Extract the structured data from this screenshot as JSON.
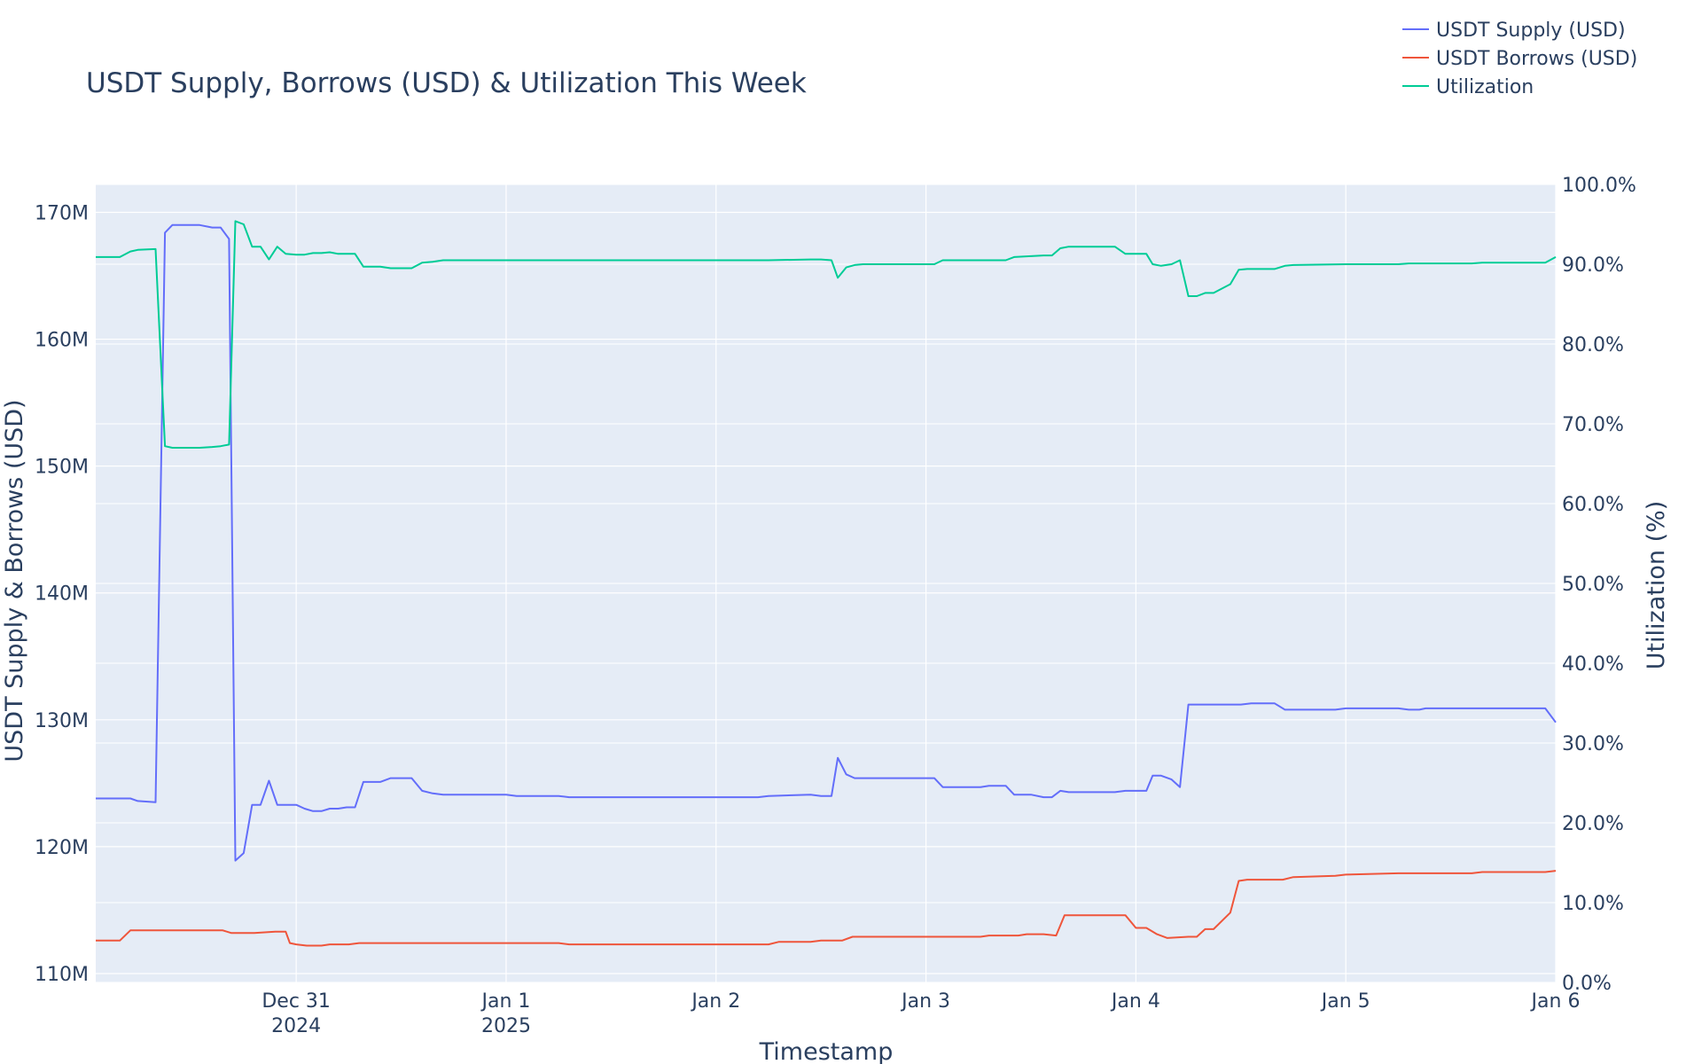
{
  "chart_data": {
    "type": "line",
    "title": "USDT Supply, Borrows (USD) & Utilization This Week",
    "xlabel": "Timestamp",
    "ylabel": "USDT Supply & Borrows (USD)",
    "y2label": "Utilization (%)",
    "xlim": [
      -0.955,
      6
    ],
    "ylim": [
      109.3,
      172.2
    ],
    "y2lim": [
      0,
      100
    ],
    "grid": true,
    "legend": "top-right",
    "x_ticks": [
      {
        "value": 0,
        "line1": "Dec 31",
        "line2": "2024"
      },
      {
        "value": 1,
        "line1": "Jan 1",
        "line2": "2025"
      },
      {
        "value": 2,
        "line1": "Jan 2",
        "line2": ""
      },
      {
        "value": 3,
        "line1": "Jan 3",
        "line2": ""
      },
      {
        "value": 4,
        "line1": "Jan 4",
        "line2": ""
      },
      {
        "value": 5,
        "line1": "Jan 5",
        "line2": ""
      },
      {
        "value": 6,
        "line1": "Jan 6",
        "line2": ""
      }
    ],
    "y_ticks": [
      {
        "value": 110,
        "label": "110M"
      },
      {
        "value": 120,
        "label": "120M"
      },
      {
        "value": 130,
        "label": "130M"
      },
      {
        "value": 140,
        "label": "140M"
      },
      {
        "value": 150,
        "label": "150M"
      },
      {
        "value": 160,
        "label": "160M"
      },
      {
        "value": 170,
        "label": "170M"
      }
    ],
    "y2_ticks": [
      {
        "value": 0,
        "label": "0.0%"
      },
      {
        "value": 10,
        "label": "10.0%"
      },
      {
        "value": 20,
        "label": "20.0%"
      },
      {
        "value": 30,
        "label": "30.0%"
      },
      {
        "value": 40,
        "label": "40.0%"
      },
      {
        "value": 50,
        "label": "50.0%"
      },
      {
        "value": 60,
        "label": "60.0%"
      },
      {
        "value": 70,
        "label": "70.0%"
      },
      {
        "value": 80,
        "label": "80.0%"
      },
      {
        "value": 90,
        "label": "90.0%"
      },
      {
        "value": 100,
        "label": "100.0%"
      }
    ],
    "series": [
      {
        "name": "USDT Supply (USD)",
        "axis": "y",
        "color": "#636efa",
        "points": [
          [
            -0.955,
            123.8
          ],
          [
            -0.88,
            123.8
          ],
          [
            -0.79,
            123.8
          ],
          [
            -0.755,
            123.6
          ],
          [
            -0.67,
            123.5
          ],
          [
            -0.625,
            168.4
          ],
          [
            -0.59,
            169.0
          ],
          [
            -0.54,
            169.0
          ],
          [
            -0.5,
            169.0
          ],
          [
            -0.46,
            169.0
          ],
          [
            -0.4,
            168.8
          ],
          [
            -0.36,
            168.8
          ],
          [
            -0.32,
            167.9
          ],
          [
            -0.29,
            118.9
          ],
          [
            -0.25,
            119.5
          ],
          [
            -0.21,
            123.3
          ],
          [
            -0.17,
            123.3
          ],
          [
            -0.13,
            125.2
          ],
          [
            -0.09,
            123.3
          ],
          [
            -0.05,
            123.3
          ],
          [
            0.0,
            123.3
          ],
          [
            0.04,
            123.0
          ],
          [
            0.08,
            122.8
          ],
          [
            0.12,
            122.8
          ],
          [
            0.16,
            123.0
          ],
          [
            0.2,
            123.0
          ],
          [
            0.24,
            123.1
          ],
          [
            0.28,
            123.1
          ],
          [
            0.32,
            125.1
          ],
          [
            0.36,
            125.1
          ],
          [
            0.4,
            125.1
          ],
          [
            0.45,
            125.4
          ],
          [
            0.5,
            125.4
          ],
          [
            0.55,
            125.4
          ],
          [
            0.6,
            124.4
          ],
          [
            0.65,
            124.2
          ],
          [
            0.7,
            124.1
          ],
          [
            0.9,
            124.1
          ],
          [
            1.0,
            124.1
          ],
          [
            1.05,
            124.0
          ],
          [
            1.25,
            124.0
          ],
          [
            1.3,
            123.9
          ],
          [
            2.0,
            123.9
          ],
          [
            2.2,
            123.9
          ],
          [
            2.25,
            124.0
          ],
          [
            2.45,
            124.1
          ],
          [
            2.5,
            124.0
          ],
          [
            2.55,
            124.0
          ],
          [
            2.58,
            127.0
          ],
          [
            2.62,
            125.7
          ],
          [
            2.66,
            125.4
          ],
          [
            2.7,
            125.4
          ],
          [
            3.0,
            125.4
          ],
          [
            3.04,
            125.4
          ],
          [
            3.08,
            124.7
          ],
          [
            3.12,
            124.7
          ],
          [
            3.26,
            124.7
          ],
          [
            3.3,
            124.8
          ],
          [
            3.38,
            124.8
          ],
          [
            3.42,
            124.1
          ],
          [
            3.5,
            124.1
          ],
          [
            3.56,
            123.9
          ],
          [
            3.6,
            123.9
          ],
          [
            3.64,
            124.4
          ],
          [
            3.68,
            124.3
          ],
          [
            3.75,
            124.3
          ],
          [
            3.9,
            124.3
          ],
          [
            3.95,
            124.4
          ],
          [
            4.05,
            124.4
          ],
          [
            4.08,
            125.6
          ],
          [
            4.12,
            125.6
          ],
          [
            4.17,
            125.3
          ],
          [
            4.21,
            124.7
          ],
          [
            4.25,
            131.2
          ],
          [
            4.32,
            131.2
          ],
          [
            4.4,
            131.2
          ],
          [
            4.5,
            131.2
          ],
          [
            4.55,
            131.3
          ],
          [
            4.66,
            131.3
          ],
          [
            4.71,
            130.8
          ],
          [
            4.8,
            130.8
          ],
          [
            4.95,
            130.8
          ],
          [
            5.0,
            130.9
          ],
          [
            5.25,
            130.9
          ],
          [
            5.3,
            130.8
          ],
          [
            5.35,
            130.8
          ],
          [
            5.38,
            130.9
          ],
          [
            5.6,
            130.9
          ],
          [
            5.9,
            130.9
          ],
          [
            5.95,
            130.9
          ],
          [
            6.0,
            129.8
          ]
        ]
      },
      {
        "name": "USDT Borrows (USD)",
        "axis": "y",
        "color": "#ef553b",
        "points": [
          [
            -0.955,
            112.6
          ],
          [
            -0.84,
            112.6
          ],
          [
            -0.79,
            113.4
          ],
          [
            -0.6,
            113.4
          ],
          [
            -0.4,
            113.4
          ],
          [
            -0.35,
            113.4
          ],
          [
            -0.31,
            113.2
          ],
          [
            -0.25,
            113.2
          ],
          [
            -0.2,
            113.2
          ],
          [
            -0.1,
            113.3
          ],
          [
            -0.05,
            113.3
          ],
          [
            -0.03,
            112.4
          ],
          [
            0.0,
            112.3
          ],
          [
            0.05,
            112.2
          ],
          [
            0.12,
            112.2
          ],
          [
            0.16,
            112.3
          ],
          [
            0.25,
            112.3
          ],
          [
            0.3,
            112.4
          ],
          [
            0.5,
            112.4
          ],
          [
            0.7,
            112.4
          ],
          [
            1.0,
            112.4
          ],
          [
            1.25,
            112.4
          ],
          [
            1.3,
            112.3
          ],
          [
            2.0,
            112.3
          ],
          [
            2.25,
            112.3
          ],
          [
            2.3,
            112.5
          ],
          [
            2.4,
            112.5
          ],
          [
            2.45,
            112.5
          ],
          [
            2.5,
            112.6
          ],
          [
            2.6,
            112.6
          ],
          [
            2.65,
            112.9
          ],
          [
            2.7,
            112.9
          ],
          [
            3.0,
            112.9
          ],
          [
            3.26,
            112.9
          ],
          [
            3.3,
            113.0
          ],
          [
            3.44,
            113.0
          ],
          [
            3.48,
            113.1
          ],
          [
            3.56,
            113.1
          ],
          [
            3.62,
            113.0
          ],
          [
            3.66,
            114.6
          ],
          [
            3.7,
            114.6
          ],
          [
            3.95,
            114.6
          ],
          [
            4.0,
            113.6
          ],
          [
            4.05,
            113.6
          ],
          [
            4.1,
            113.1
          ],
          [
            4.15,
            112.8
          ],
          [
            4.25,
            112.9
          ],
          [
            4.29,
            112.9
          ],
          [
            4.33,
            113.5
          ],
          [
            4.37,
            113.5
          ],
          [
            4.45,
            114.8
          ],
          [
            4.49,
            117.3
          ],
          [
            4.53,
            117.4
          ],
          [
            4.7,
            117.4
          ],
          [
            4.75,
            117.6
          ],
          [
            4.95,
            117.7
          ],
          [
            5.0,
            117.8
          ],
          [
            5.25,
            117.9
          ],
          [
            5.6,
            117.9
          ],
          [
            5.65,
            118.0
          ],
          [
            5.95,
            118.0
          ],
          [
            6.0,
            118.1
          ]
        ]
      },
      {
        "name": "Utilization",
        "axis": "y2",
        "color": "#00cc96",
        "points": [
          [
            -0.955,
            90.9
          ],
          [
            -0.84,
            90.9
          ],
          [
            -0.79,
            91.6
          ],
          [
            -0.755,
            91.8
          ],
          [
            -0.67,
            91.9
          ],
          [
            -0.625,
            67.2
          ],
          [
            -0.59,
            67.0
          ],
          [
            -0.5,
            67.0
          ],
          [
            -0.46,
            67.0
          ],
          [
            -0.4,
            67.1
          ],
          [
            -0.36,
            67.2
          ],
          [
            -0.32,
            67.4
          ],
          [
            -0.29,
            95.4
          ],
          [
            -0.25,
            95.0
          ],
          [
            -0.21,
            92.2
          ],
          [
            -0.17,
            92.2
          ],
          [
            -0.13,
            90.6
          ],
          [
            -0.09,
            92.2
          ],
          [
            -0.05,
            91.3
          ],
          [
            0.0,
            91.2
          ],
          [
            0.04,
            91.2
          ],
          [
            0.08,
            91.4
          ],
          [
            0.12,
            91.4
          ],
          [
            0.16,
            91.5
          ],
          [
            0.2,
            91.3
          ],
          [
            0.28,
            91.3
          ],
          [
            0.32,
            89.7
          ],
          [
            0.36,
            89.7
          ],
          [
            0.4,
            89.7
          ],
          [
            0.45,
            89.5
          ],
          [
            0.5,
            89.5
          ],
          [
            0.55,
            89.5
          ],
          [
            0.6,
            90.2
          ],
          [
            0.65,
            90.3
          ],
          [
            0.7,
            90.5
          ],
          [
            1.0,
            90.5
          ],
          [
            2.2,
            90.5
          ],
          [
            2.25,
            90.5
          ],
          [
            2.45,
            90.6
          ],
          [
            2.5,
            90.6
          ],
          [
            2.55,
            90.5
          ],
          [
            2.58,
            88.3
          ],
          [
            2.62,
            89.6
          ],
          [
            2.66,
            89.9
          ],
          [
            2.7,
            90.0
          ],
          [
            3.0,
            90.0
          ],
          [
            3.04,
            90.0
          ],
          [
            3.08,
            90.5
          ],
          [
            3.3,
            90.5
          ],
          [
            3.38,
            90.5
          ],
          [
            3.42,
            90.9
          ],
          [
            3.56,
            91.1
          ],
          [
            3.6,
            91.1
          ],
          [
            3.64,
            92.0
          ],
          [
            3.68,
            92.2
          ],
          [
            3.75,
            92.2
          ],
          [
            3.9,
            92.2
          ],
          [
            3.95,
            91.3
          ],
          [
            4.05,
            91.3
          ],
          [
            4.08,
            90.0
          ],
          [
            4.12,
            89.8
          ],
          [
            4.17,
            90.0
          ],
          [
            4.21,
            90.5
          ],
          [
            4.25,
            86.0
          ],
          [
            4.29,
            86.0
          ],
          [
            4.33,
            86.4
          ],
          [
            4.37,
            86.4
          ],
          [
            4.45,
            87.5
          ],
          [
            4.49,
            89.3
          ],
          [
            4.53,
            89.4
          ],
          [
            4.66,
            89.4
          ],
          [
            4.71,
            89.8
          ],
          [
            4.75,
            89.9
          ],
          [
            5.0,
            90.0
          ],
          [
            5.25,
            90.0
          ],
          [
            5.3,
            90.1
          ],
          [
            5.6,
            90.1
          ],
          [
            5.65,
            90.2
          ],
          [
            5.95,
            90.2
          ],
          [
            6.0,
            90.9
          ]
        ]
      }
    ]
  }
}
